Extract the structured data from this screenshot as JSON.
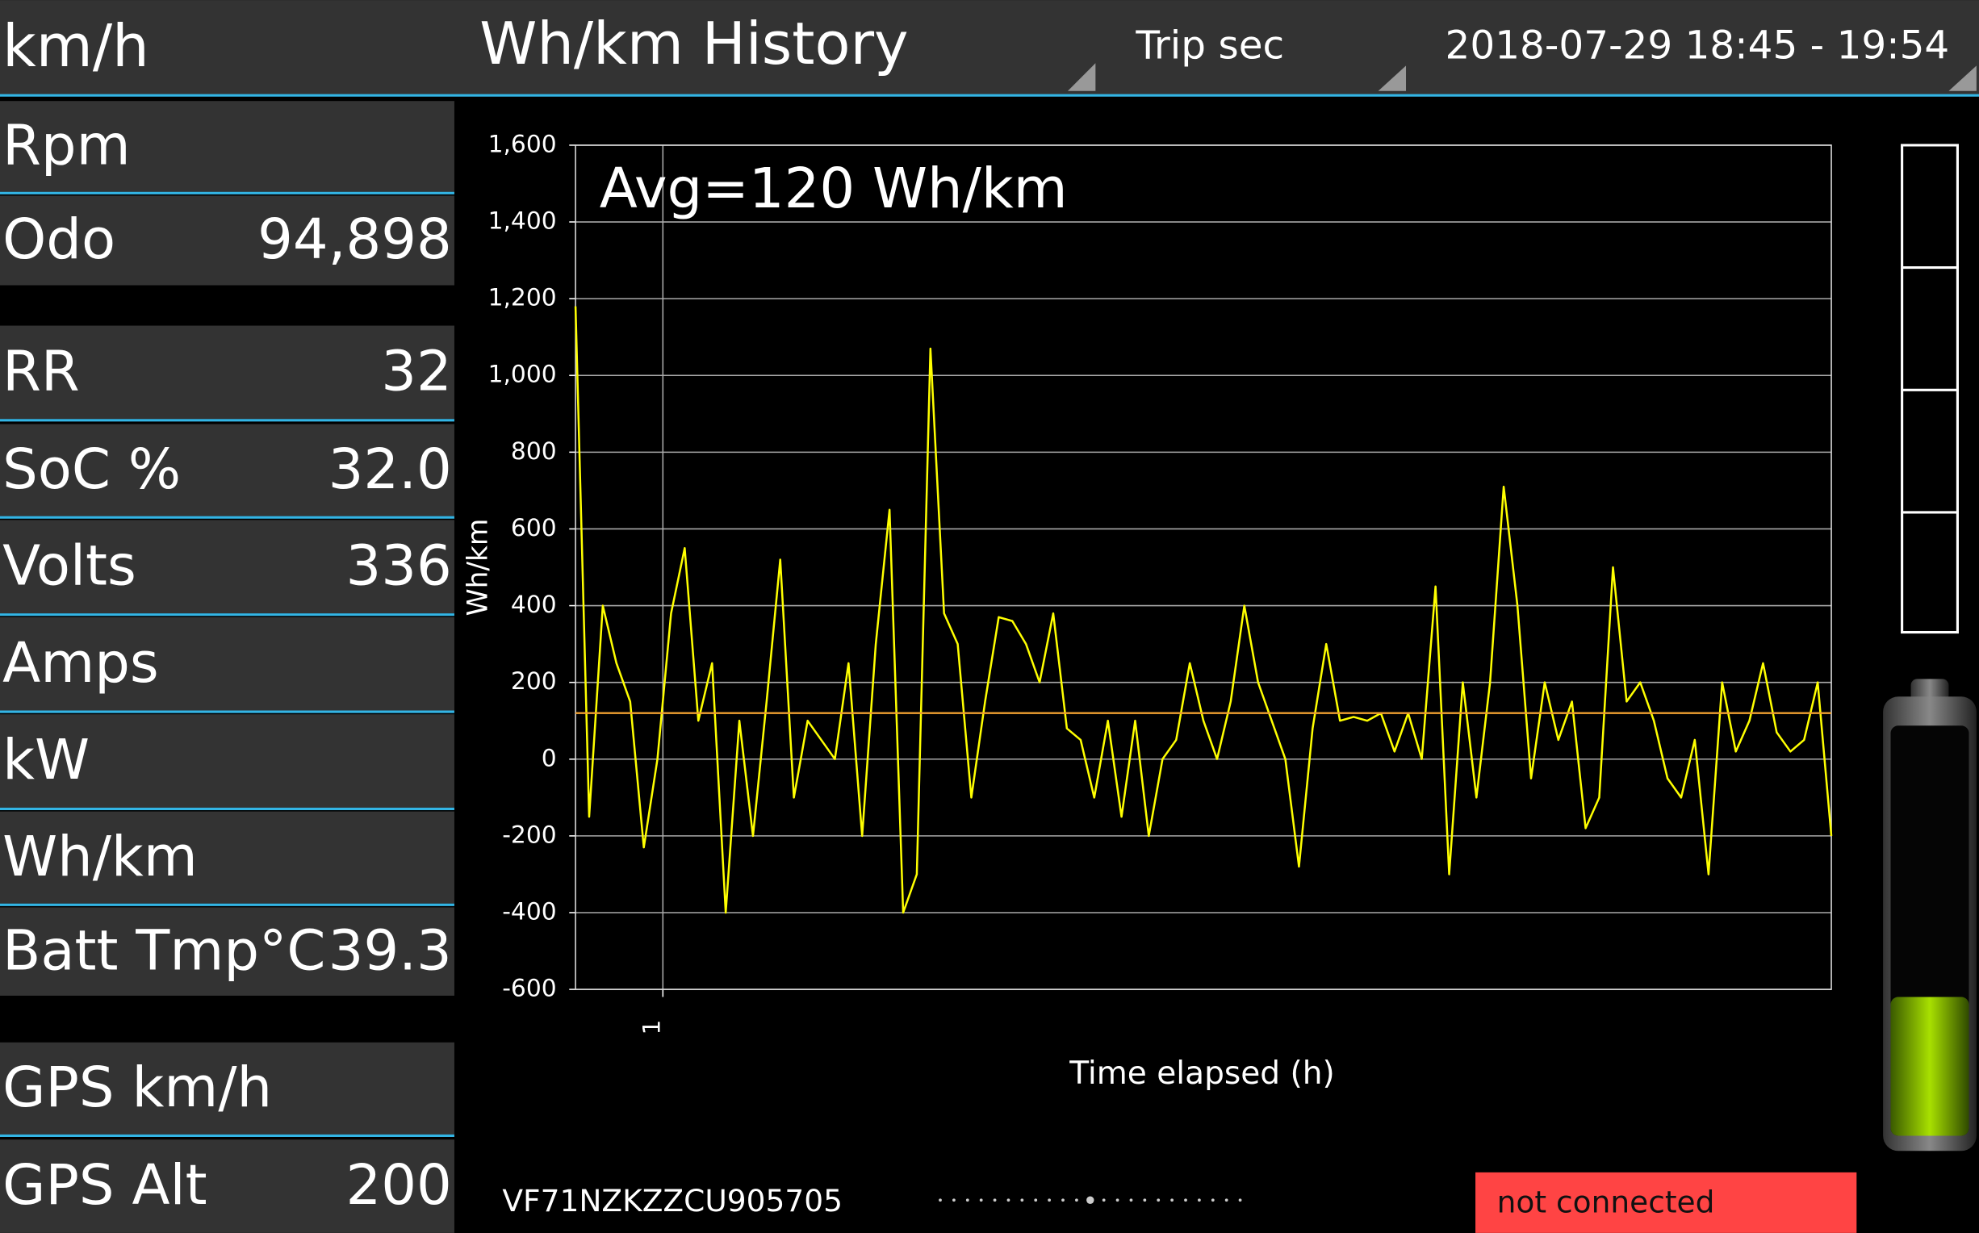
{
  "header": {
    "speed_label": "km/h",
    "title": "Wh/km History",
    "mode": "Trip sec",
    "date_range": "2018-07-29 18:45 - 19:54"
  },
  "sidebar": {
    "rows": [
      {
        "label": "Rpm"
      },
      {
        "label": "Odo",
        "value": "94,898"
      },
      {
        "label": "RR",
        "value": "32"
      },
      {
        "label": "SoC %",
        "value": "32.0"
      },
      {
        "label": "Volts",
        "value": "336"
      },
      {
        "label": "Amps"
      },
      {
        "label": "kW"
      },
      {
        "label": "Wh/km"
      },
      {
        "label": "Batt Tmp°C",
        "value": "39.3"
      },
      {
        "label": "GPS km/h"
      },
      {
        "label": "GPS Alt",
        "value": "200"
      }
    ]
  },
  "chart_data": {
    "type": "line",
    "ylabel": "Wh/km",
    "xlabel": "Time elapsed (h)",
    "annotation": "Avg=120 Wh/km",
    "avg_line": {
      "value": 120,
      "color": "#f0a030"
    },
    "ylim": [
      -600,
      1600
    ],
    "yticks": [
      -600,
      -400,
      -200,
      0,
      200,
      400,
      600,
      800,
      {
        "value": 1000,
        "label": "1,000"
      },
      {
        "value": 1200,
        "label": "1,200"
      },
      {
        "value": 1400,
        "label": "1,400"
      },
      {
        "value": 1600,
        "label": "1,600"
      }
    ],
    "xlim": [
      0.92,
      2.07
    ],
    "xticks": [
      1
    ],
    "grid": true,
    "x": [
      0.92,
      0.9325,
      0.945,
      0.9575,
      0.97,
      0.9825,
      0.995,
      1.0075,
      1.02,
      1.0325,
      1.045,
      1.0575,
      1.07,
      1.0825,
      1.095,
      1.1075,
      1.12,
      1.1325,
      1.145,
      1.1575,
      1.17,
      1.1825,
      1.195,
      1.2075,
      1.22,
      1.2325,
      1.245,
      1.2575,
      1.27,
      1.2825,
      1.295,
      1.3075,
      1.32,
      1.3325,
      1.345,
      1.3575,
      1.37,
      1.3825,
      1.395,
      1.4075,
      1.42,
      1.4325,
      1.445,
      1.4575,
      1.47,
      1.4825,
      1.495,
      1.5075,
      1.52,
      1.5325,
      1.545,
      1.5575,
      1.57,
      1.5825,
      1.595,
      1.6075,
      1.62,
      1.6325,
      1.645,
      1.6575,
      1.67,
      1.6825,
      1.695,
      1.7075,
      1.72,
      1.7325,
      1.745,
      1.7575,
      1.77,
      1.7825,
      1.795,
      1.8075,
      1.82,
      1.8325,
      1.845,
      1.8575,
      1.87,
      1.8825,
      1.895,
      1.9075,
      1.92,
      1.9325,
      1.945,
      1.9575,
      1.97,
      1.9825,
      1.995,
      2.0075,
      2.02,
      2.0325,
      2.045,
      2.0575,
      2.07
    ],
    "series": [
      {
        "color": "#ffff00",
        "values": [
          1180,
          -150,
          400,
          250,
          150,
          -230,
          0,
          380,
          550,
          100,
          250,
          -400,
          100,
          -200,
          150,
          520,
          -100,
          100,
          50,
          0,
          250,
          -200,
          300,
          650,
          -400,
          -300,
          1070,
          380,
          300,
          -100,
          150,
          370,
          360,
          300,
          200,
          380,
          80,
          50,
          -100,
          100,
          -150,
          100,
          -200,
          0,
          50,
          250,
          100,
          0,
          150,
          400,
          200,
          100,
          0,
          -280,
          80,
          300,
          100,
          110,
          100,
          120,
          20,
          120,
          0,
          450,
          -300,
          200,
          -100,
          200,
          710,
          400,
          -50,
          200,
          50,
          150,
          -180,
          -100,
          500,
          150,
          200,
          100,
          -50,
          -100,
          50,
          -300,
          200,
          20,
          100,
          250,
          70,
          20,
          50,
          200,
          -200
        ]
      }
    ]
  },
  "footer": {
    "vin": "VF71NZKZZCU905705",
    "status": "not connected"
  }
}
